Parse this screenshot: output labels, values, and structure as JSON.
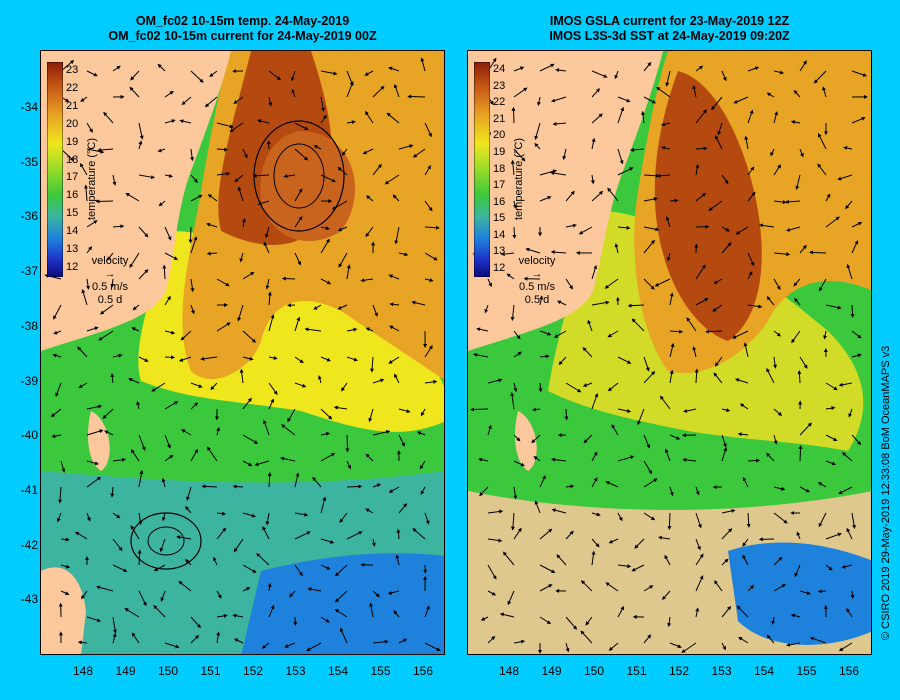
{
  "left_panel": {
    "title_line1": "OM_fc02 10-15m temp. 24-May-2019",
    "title_line2": "OM_fc02 10-15m current for 24-May-2019 00Z",
    "colorbar_ticks": [
      "23",
      "22",
      "21",
      "20",
      "19",
      "18",
      "17",
      "16",
      "15",
      "14",
      "13",
      "12"
    ],
    "colorbar_title": "temperature (°C)",
    "velocity_label": "velocity",
    "velocity_speed": "0.5 m/s",
    "velocity_time": "0.5 d"
  },
  "right_panel": {
    "title_line1": "IMOS GSLA current for 23-May-2019 12Z",
    "title_line2": "IMOS L3S-3d SST at 24-May-2019 09:20Z",
    "colorbar_ticks": [
      "24",
      "23",
      "22",
      "21",
      "20",
      "19",
      "18",
      "17",
      "16",
      "15",
      "14",
      "13",
      "12"
    ],
    "colorbar_title": "temperature (°C)",
    "velocity_label": "velocity",
    "velocity_speed": "0.5 m/s",
    "velocity_time": "0.5 d"
  },
  "axes": {
    "y_ticks": [
      "-34",
      "-35",
      "-36",
      "-37",
      "-38",
      "-39",
      "-40",
      "-41",
      "-42",
      "-43"
    ],
    "x_ticks": [
      "148",
      "149",
      "150",
      "151",
      "152",
      "153",
      "154",
      "155",
      "156"
    ]
  },
  "credit": "© CSIRO 2019   29-May-2019 12:33:08 BoM OceanMAPS v3",
  "colors": {
    "background": "#00ccff",
    "land": "#fcc89c",
    "warm": "#c85a14",
    "mid": "#e8a424",
    "yellow": "#f0e61e",
    "green": "#3cc83c",
    "teal": "#3cb4a0",
    "blue": "#1464e6"
  },
  "chart_data": [
    {
      "type": "heatmap",
      "title": "OM_fc02 10-15m temp. 24-May-2019 / OM_fc02 10-15m current for 24-May-2019 00Z",
      "x_range": [
        147.2,
        156.5
      ],
      "y_range": [
        -44,
        -33.2
      ],
      "colorbar_range": [
        12,
        23
      ],
      "colorbar_label": "temperature (°C)",
      "features": [
        "warm core eddy near 152.5E 35.2S",
        "cold eddy near 149.8E 42S"
      ]
    },
    {
      "type": "heatmap",
      "title": "IMOS GSLA current for 23-May-2019 12Z / IMOS L3S-3d SST at 24-May-2019 09:20Z",
      "x_range": [
        147.2,
        156.5
      ],
      "y_range": [
        -44,
        -33.2
      ],
      "colorbar_range": [
        12,
        24
      ],
      "colorbar_label": "temperature (°C)"
    }
  ]
}
